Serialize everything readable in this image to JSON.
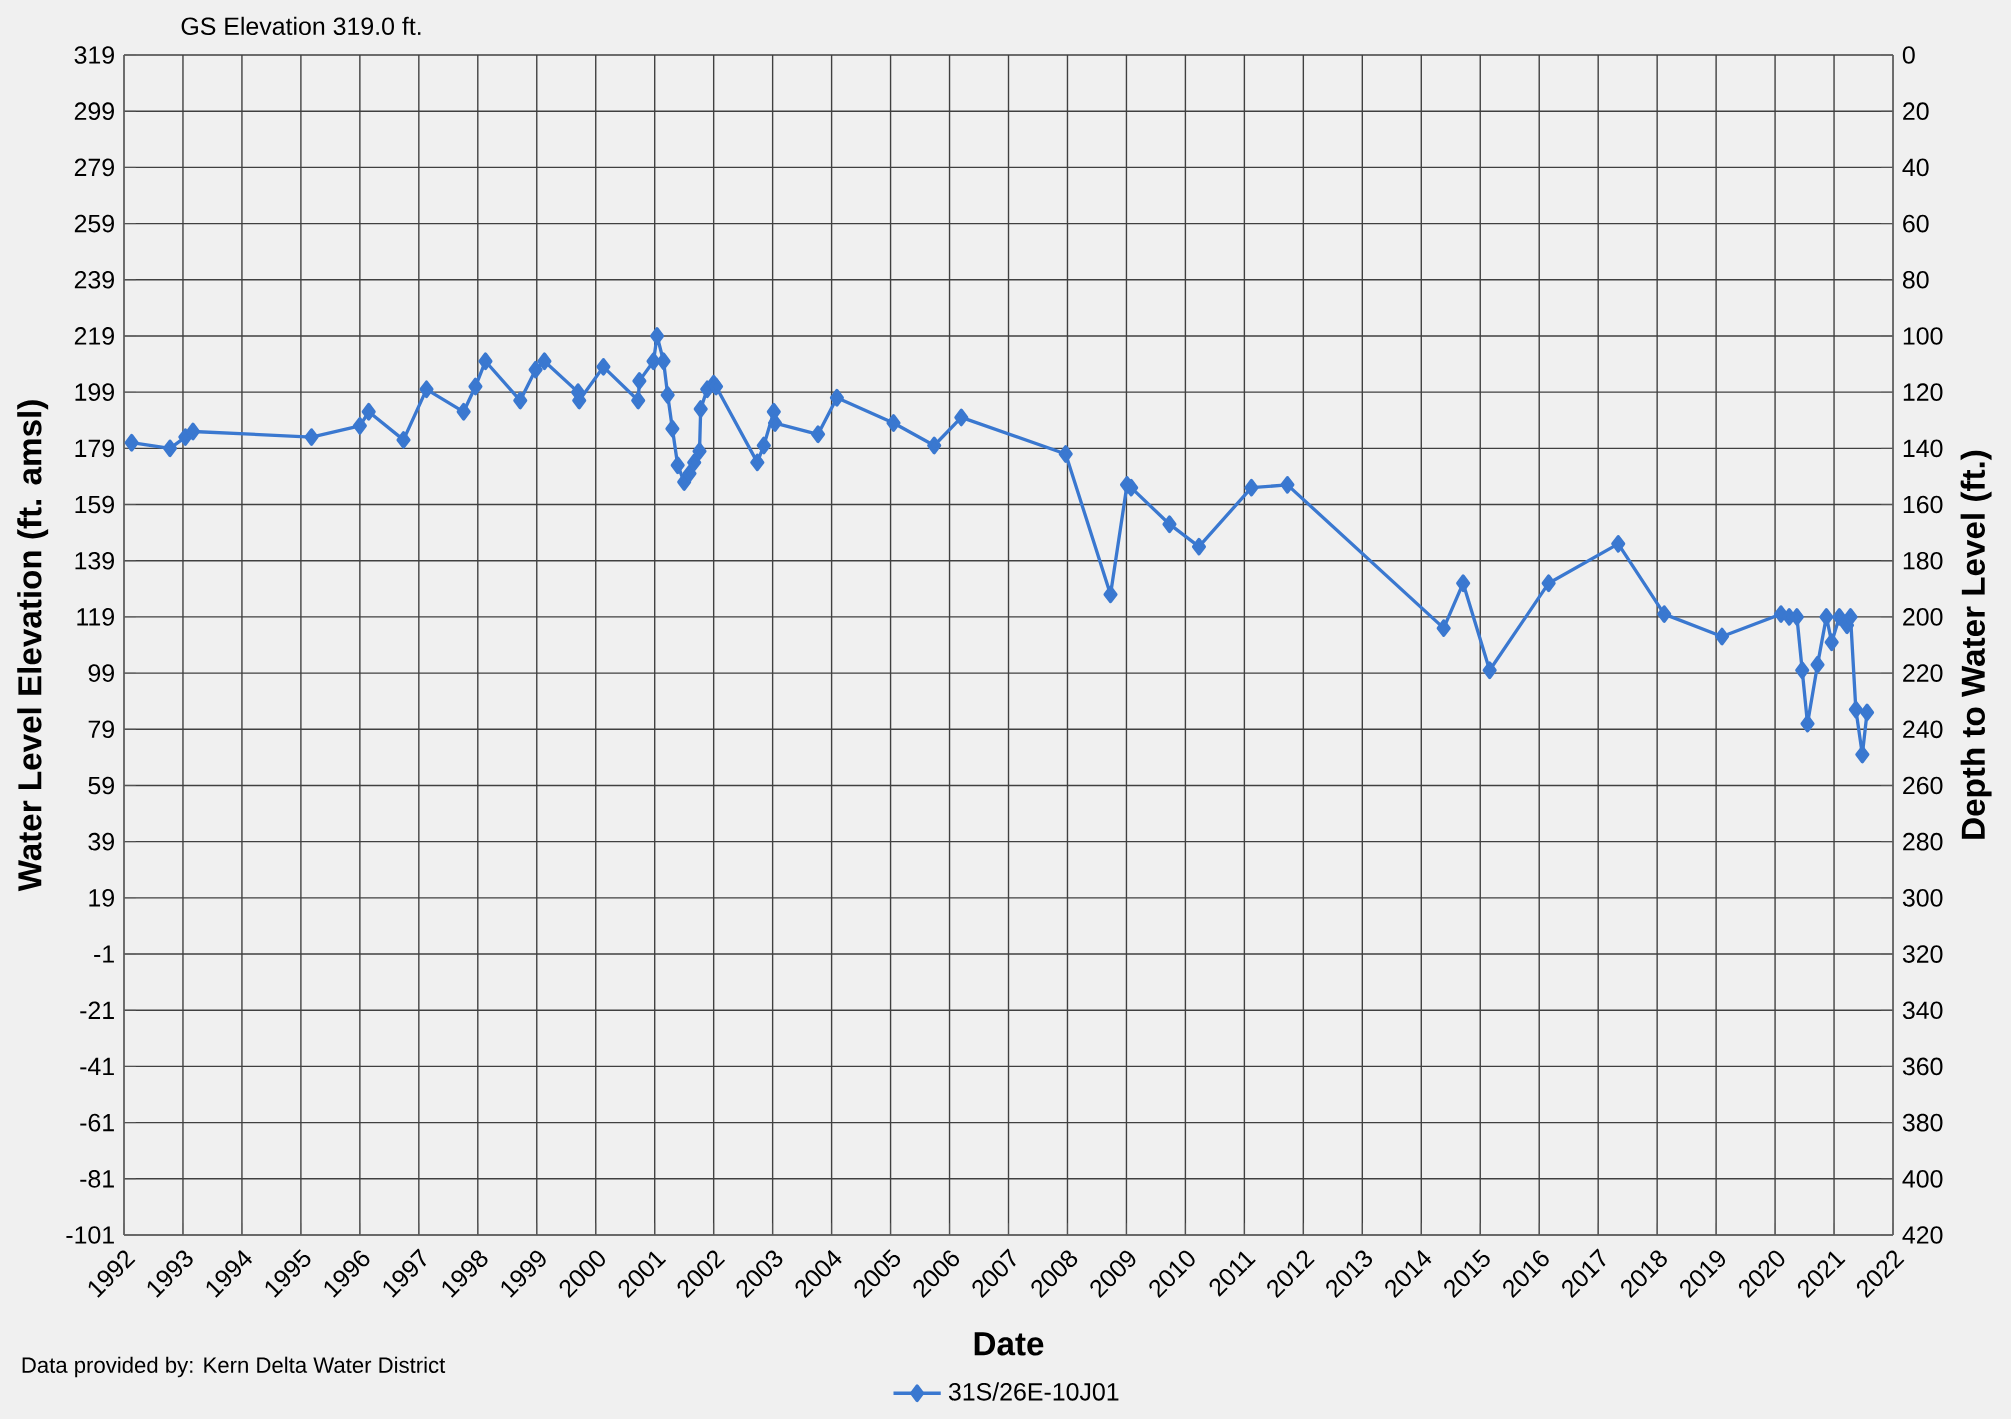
{
  "chart_data": {
    "type": "line",
    "title": "GS Elevation  319.0 ft.",
    "xlabel": "Date",
    "ylabel": "Water Level Elevation (ft. amsl)",
    "y2label": "Depth to Water Level (ft.)",
    "annotations": [
      "Data provided by: Kern Delta Water District"
    ],
    "x": [
      1992.13,
      1992.78,
      1993.04,
      1993.17,
      1995.18,
      1996.0,
      1996.15,
      1996.74,
      1997.13,
      1997.76,
      1997.96,
      1998.13,
      1998.72,
      1998.98,
      1999.13,
      1999.7,
      1999.72,
      2000.13,
      2000.72,
      2000.74,
      2000.98,
      2001.04,
      2001.15,
      2001.22,
      2001.3,
      2001.39,
      2001.5,
      2001.59,
      2001.67,
      2001.76,
      2001.78,
      2001.89,
      2002.0,
      2002.04,
      2002.74,
      2002.85,
      2003.02,
      2003.04,
      2003.77,
      2004.09,
      2005.05,
      2005.74,
      2006.2,
      2007.97,
      2008.73,
      2009.01,
      2009.08,
      2009.73,
      2010.23,
      2011.12,
      2011.73,
      2014.38,
      2014.71,
      2015.16,
      2016.16,
      2017.34,
      2018.12,
      2019.1,
      2020.1,
      2020.24,
      2020.37,
      2020.46,
      2020.55,
      2020.72,
      2020.87,
      2020.96,
      2021.09,
      2021.22,
      2021.28,
      2021.37,
      2021.48,
      2021.56
    ],
    "series": [
      {
        "name": "31S/26E-10J01",
        "color": "#3a78d0",
        "values": [
          181,
          179,
          183,
          185,
          183,
          187,
          192,
          182,
          200,
          192,
          201,
          210,
          196,
          207,
          210,
          199,
          196,
          208,
          196,
          203,
          210,
          219,
          210,
          198,
          186,
          173,
          167,
          170,
          174,
          178,
          193,
          200,
          202,
          201,
          174,
          180,
          192,
          188,
          184,
          197,
          188,
          180,
          190,
          177,
          127,
          166,
          165,
          152,
          144,
          165,
          166,
          115,
          131,
          100,
          131,
          145,
          120,
          112,
          120,
          119,
          119,
          100,
          81,
          102,
          119,
          110,
          119,
          116,
          119,
          86,
          70,
          85
        ]
      }
    ],
    "xlim": [
      1992,
      2022
    ],
    "xticks": [
      1992,
      1993,
      1994,
      1995,
      1996,
      1997,
      1998,
      1999,
      2000,
      2001,
      2002,
      2003,
      2004,
      2005,
      2006,
      2007,
      2008,
      2009,
      2010,
      2011,
      2012,
      2013,
      2014,
      2015,
      2016,
      2017,
      2018,
      2019,
      2020,
      2021,
      2022
    ],
    "ylim": [
      -101,
      319
    ],
    "yticks": [
      -101,
      -81,
      -61,
      -41,
      -21,
      -1,
      19,
      39,
      59,
      79,
      99,
      119,
      139,
      159,
      179,
      199,
      219,
      239,
      259,
      279,
      299,
      319
    ],
    "y2lim": [
      420,
      0
    ],
    "y2ticks": [
      0,
      20,
      40,
      60,
      80,
      100,
      120,
      140,
      160,
      180,
      200,
      220,
      240,
      260,
      280,
      300,
      320,
      340,
      360,
      380,
      400,
      420
    ],
    "grid": true,
    "legend": "bottom",
    "marker": "diamond",
    "line_style": "solid"
  }
}
